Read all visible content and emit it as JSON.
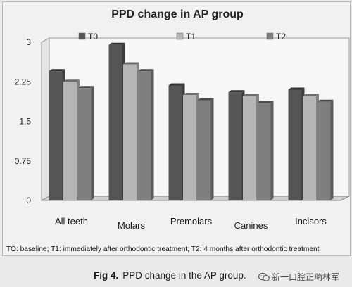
{
  "chart_data": {
    "type": "bar",
    "title": "PPD change in AP group",
    "categories": [
      "All teeth",
      "Molars",
      "Premolars",
      "Canines",
      "Incisors"
    ],
    "series": [
      {
        "name": "T0",
        "values": [
          2.45,
          2.95,
          2.18,
          2.05,
          2.1
        ],
        "color": "#555555"
      },
      {
        "name": "T1",
        "values": [
          2.25,
          2.58,
          2.0,
          1.98,
          1.98
        ],
        "color": "#b5b5b5"
      },
      {
        "name": "T2",
        "values": [
          2.13,
          2.45,
          1.9,
          1.85,
          1.87
        ],
        "color": "#7f7f7f"
      }
    ],
    "yticks": [
      "0",
      "0.75",
      "1.5",
      "2.25",
      "3"
    ],
    "ylim": [
      0,
      3
    ],
    "legend_position": "top",
    "grid": false
  },
  "footnote": "TO: baseline; T1: immediately after orthodontic treatment; T2: 4 months after orthodontic treatment",
  "caption": {
    "label": "Fig 4.",
    "text": "PPD change in the AP group."
  },
  "watermark": "新一口腔正畸林军"
}
